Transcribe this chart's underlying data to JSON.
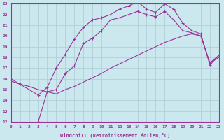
{
  "xlabel": "Windchill (Refroidissement éolien,°C)",
  "bg_color": "#cce8ef",
  "grid_color": "#b0cfd8",
  "line_color": "#993399",
  "xlim": [
    0,
    23
  ],
  "ylim": [
    12,
    23
  ],
  "xticks": [
    0,
    1,
    2,
    3,
    4,
    5,
    6,
    7,
    8,
    9,
    10,
    11,
    12,
    13,
    14,
    15,
    16,
    17,
    18,
    19,
    20,
    21,
    22,
    23
  ],
  "yticks": [
    12,
    13,
    14,
    15,
    16,
    17,
    18,
    19,
    20,
    21,
    22,
    23
  ],
  "curve1_x": [
    0,
    1,
    3,
    4,
    5,
    6,
    7,
    8,
    9,
    10,
    11,
    12,
    13,
    14,
    15,
    16,
    17,
    18,
    19,
    20,
    21,
    22,
    23
  ],
  "curve1_y": [
    16.0,
    15.5,
    14.5,
    15.2,
    17.0,
    18.3,
    19.7,
    20.8,
    21.5,
    21.7,
    22.0,
    22.5,
    22.8,
    23.2,
    22.5,
    22.2,
    23.0,
    22.5,
    21.2,
    20.5,
    20.2,
    17.3,
    18.2
  ],
  "curve2_x": [
    3,
    4,
    5,
    6,
    7,
    8,
    9,
    10,
    11,
    12,
    13,
    14,
    15,
    16,
    17,
    18,
    19,
    20,
    21,
    22,
    23
  ],
  "curve2_y": [
    12.0,
    14.8,
    15.0,
    16.5,
    17.2,
    19.3,
    19.8,
    20.5,
    21.5,
    21.7,
    22.0,
    22.3,
    22.0,
    21.8,
    22.3,
    21.5,
    20.5,
    20.3,
    20.0,
    17.5,
    18.2
  ],
  "curve3_x": [
    0,
    1,
    2,
    3,
    4,
    5,
    6,
    7,
    8,
    9,
    10,
    11,
    12,
    13,
    14,
    15,
    16,
    17,
    18,
    19,
    20,
    21,
    22,
    23
  ],
  "curve3_y": [
    15.8,
    15.5,
    15.3,
    15.0,
    14.8,
    14.6,
    15.0,
    15.3,
    15.7,
    16.1,
    16.5,
    17.0,
    17.4,
    17.8,
    18.2,
    18.6,
    19.0,
    19.4,
    19.7,
    20.0,
    20.2,
    20.0,
    17.5,
    18.0
  ]
}
